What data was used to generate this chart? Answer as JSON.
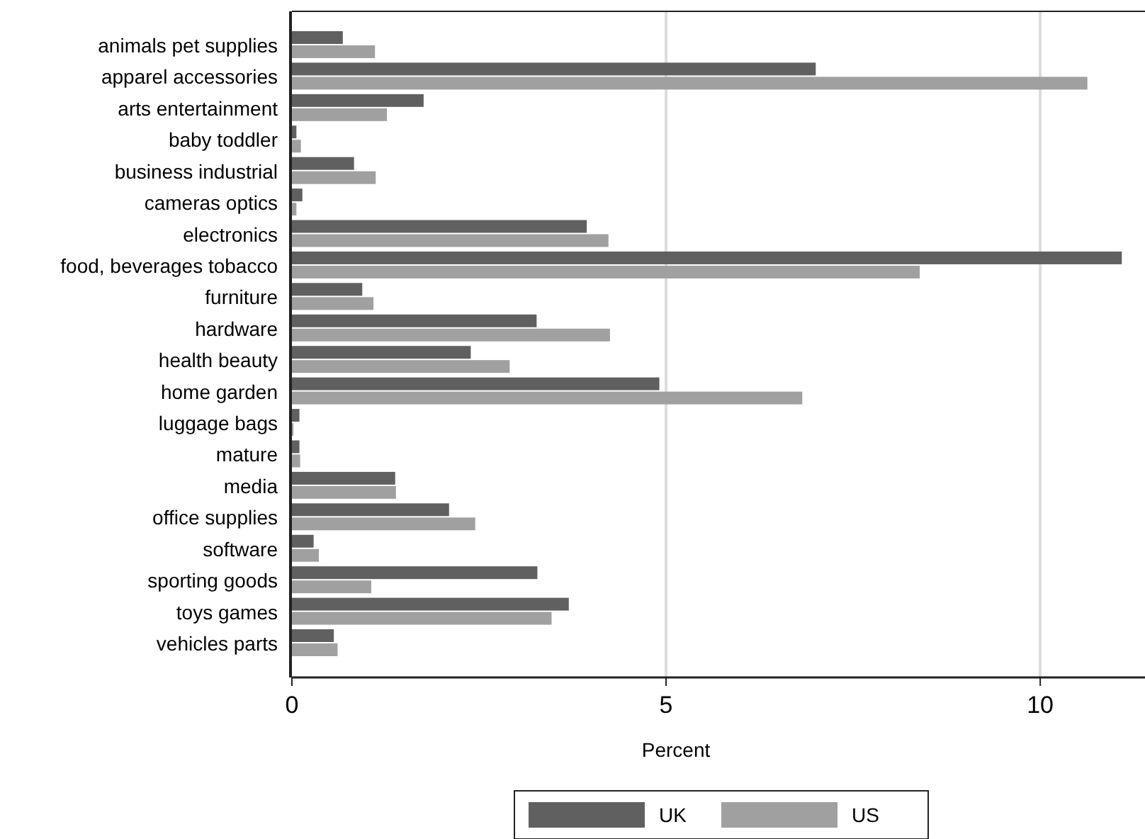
{
  "chart_data": {
    "type": "bar",
    "orientation": "horizontal",
    "xlabel": "Percent",
    "categories": [
      "animals pet supplies",
      "apparel accessories",
      "arts entertainment",
      "baby toddler",
      "business industrial",
      "cameras optics",
      "electronics",
      "food, beverages tobacco",
      "furniture",
      "hardware",
      "health beauty",
      "home garden",
      "luggage bags",
      "mature",
      "media",
      "office supplies",
      "software",
      "sporting goods",
      "toys games",
      "vehicles parts"
    ],
    "series": [
      {
        "name": "UK",
        "color": "#606060",
        "values": [
          0.68,
          7.0,
          1.76,
          0.06,
          0.83,
          0.14,
          3.94,
          11.09,
          0.94,
          3.27,
          2.39,
          4.91,
          0.1,
          0.1,
          1.38,
          2.1,
          0.29,
          3.28,
          3.7,
          0.56
        ]
      },
      {
        "name": "US",
        "color": "#a0a0a0",
        "values": [
          1.11,
          10.63,
          1.27,
          0.12,
          1.12,
          0.06,
          4.23,
          8.39,
          1.09,
          4.25,
          2.91,
          6.82,
          0.02,
          0.11,
          1.39,
          2.45,
          0.36,
          1.06,
          3.47,
          0.61
        ]
      }
    ],
    "xlim": [
      0,
      11.4
    ],
    "xticks": [
      0,
      5,
      10
    ],
    "grid": "x",
    "legend": "bottom"
  }
}
